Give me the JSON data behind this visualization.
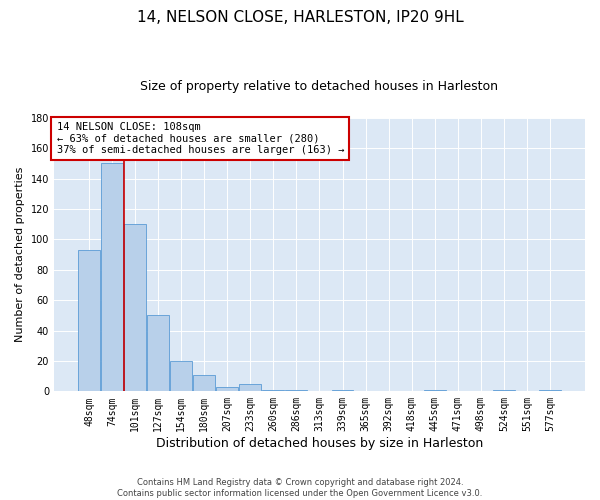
{
  "title": "14, NELSON CLOSE, HARLESTON, IP20 9HL",
  "subtitle": "Size of property relative to detached houses in Harleston",
  "xlabel": "Distribution of detached houses by size in Harleston",
  "ylabel": "Number of detached properties",
  "bar_labels": [
    "48sqm",
    "74sqm",
    "101sqm",
    "127sqm",
    "154sqm",
    "180sqm",
    "207sqm",
    "233sqm",
    "260sqm",
    "286sqm",
    "313sqm",
    "339sqm",
    "365sqm",
    "392sqm",
    "418sqm",
    "445sqm",
    "471sqm",
    "498sqm",
    "524sqm",
    "551sqm",
    "577sqm"
  ],
  "bar_values": [
    93,
    150,
    110,
    50,
    20,
    11,
    3,
    5,
    1,
    1,
    0,
    1,
    0,
    0,
    0,
    1,
    0,
    0,
    1,
    0,
    1
  ],
  "bar_color": "#b8d0ea",
  "bar_edgecolor": "#5b9bd5",
  "background_color": "#dce8f5",
  "grid_color": "#ffffff",
  "red_line_x": 1.5,
  "annotation_label": "14 NELSON CLOSE: 108sqm",
  "annotation_line1": "← 63% of detached houses are smaller (280)",
  "annotation_line2": "37% of semi-detached houses are larger (163) →",
  "annotation_box_facecolor": "#ffffff",
  "annotation_box_edgecolor": "#cc0000",
  "ylim": [
    0,
    180
  ],
  "yticks": [
    0,
    20,
    40,
    60,
    80,
    100,
    120,
    140,
    160,
    180
  ],
  "footer_line1": "Contains HM Land Registry data © Crown copyright and database right 2024.",
  "footer_line2": "Contains public sector information licensed under the Open Government Licence v3.0.",
  "title_fontsize": 11,
  "subtitle_fontsize": 9,
  "tick_fontsize": 7,
  "ylabel_fontsize": 8,
  "xlabel_fontsize": 9,
  "annotation_fontsize": 7.5,
  "footer_fontsize": 6
}
